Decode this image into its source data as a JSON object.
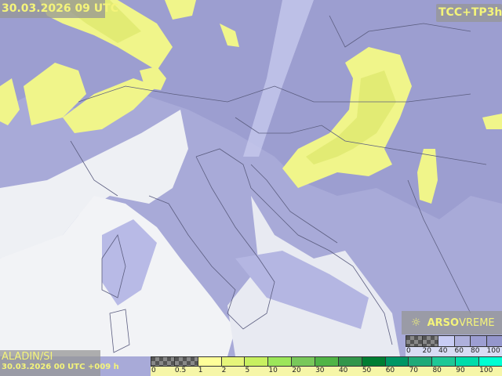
{
  "header": {
    "valid_time": "30.03.2026 09 UTC",
    "product": "TCC+TP3h"
  },
  "footer": {
    "model": "ALADIN/SI",
    "run": "30.03.2026 00 UTC +009 h"
  },
  "logo": {
    "brand": "ARSO",
    "name": "VREME",
    "icon": "sun-cloud-icon"
  },
  "precip_legend": {
    "labels": [
      "0",
      "0.5",
      "1",
      "2",
      "5",
      "10",
      "20",
      "30",
      "40",
      "50",
      "60",
      "70",
      "80",
      "90",
      "100"
    ],
    "colors": [
      "checker",
      "checker",
      "#ffff99",
      "#e6f57a",
      "#c8f060",
      "#9ce65a",
      "#78c85a",
      "#50b446",
      "#32964a",
      "#007d32",
      "#009664",
      "#1eaa78",
      "#1ec896",
      "#00dcaa",
      "#00ffd2"
    ]
  },
  "cloud_legend": {
    "labels": [
      "0",
      "20",
      "40",
      "60",
      "80",
      "100"
    ],
    "colors": [
      "checker",
      "checker",
      "#c8ccf4",
      "#aeb0dc",
      "#9c9ed2",
      "#9496cc"
    ]
  },
  "colors": {
    "cloud": "#a6a8d8",
    "clear": "#eef0f4",
    "precip": "#f0f58a",
    "label_text": "#f4f47a"
  }
}
